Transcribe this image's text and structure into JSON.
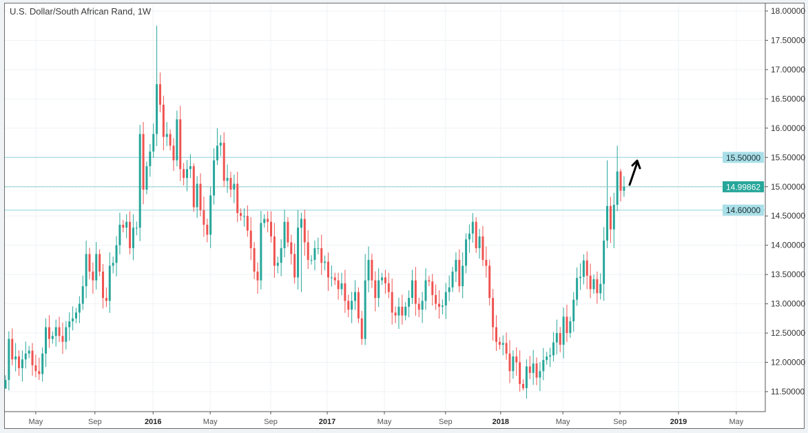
{
  "chart_data": {
    "type": "candlestick",
    "title": "U.S. Dollar/South African Rand, 1W",
    "ylim": [
      11.35,
      18.1
    ],
    "y_ticks": [
      11.5,
      12.0,
      12.5,
      13.0,
      13.5,
      14.0,
      14.5,
      15.0,
      15.5,
      16.0,
      16.5,
      17.0,
      17.5,
      18.0
    ],
    "y_tick_labels": [
      "11.50000",
      "12.00000",
      "12.50000",
      "13.00000",
      "13.50000",
      "14.00000",
      "14.50000",
      "15.00000",
      "15.50000",
      "16.00000",
      "16.50000",
      "17.00000",
      "17.50000",
      "18.00000"
    ],
    "x_ticks": [
      {
        "label": "May",
        "week": 9.0,
        "bold": false
      },
      {
        "label": "Sep",
        "week": 26.6,
        "bold": false
      },
      {
        "label": "2016",
        "week": 43.9,
        "bold": true
      },
      {
        "label": "May",
        "week": 60.9,
        "bold": false
      },
      {
        "label": "Sep",
        "week": 78.9,
        "bold": false
      },
      {
        "label": "2017",
        "week": 95.7,
        "bold": true
      },
      {
        "label": "May",
        "week": 112.7,
        "bold": false
      },
      {
        "label": "Sep",
        "week": 130.9,
        "bold": false
      },
      {
        "label": "2018",
        "week": 147.3,
        "bold": true
      },
      {
        "label": "May",
        "week": 165.8,
        "bold": false
      },
      {
        "label": "Sep",
        "week": 182.8,
        "bold": false
      },
      {
        "label": "2019",
        "week": 200.2,
        "bold": true
      },
      {
        "label": "May",
        "week": 217.4,
        "bold": false
      }
    ],
    "first_open": 11.55,
    "close": [
      11.7,
      12.4,
      12.05,
      12.1,
      11.9,
      12.05,
      12.15,
      12.2,
      11.95,
      11.85,
      11.8,
      12.15,
      12.6,
      12.4,
      12.45,
      12.6,
      12.45,
      12.35,
      12.6,
      12.7,
      12.75,
      12.85,
      13.0,
      13.3,
      13.85,
      13.55,
      13.4,
      13.85,
      13.55,
      13.1,
      13.05,
      13.65,
      13.7,
      14.0,
      14.35,
      14.3,
      14.4,
      13.95,
      14.3,
      14.3,
      15.9,
      14.95,
      15.35,
      15.6,
      15.9,
      16.75,
      16.4,
      15.85,
      15.9,
      15.7,
      15.45,
      16.15,
      15.3,
      15.15,
      15.3,
      15.35,
      14.65,
      15.05,
      14.6,
      14.35,
      14.18,
      14.85,
      15.45,
      15.7,
      15.75,
      15.1,
      15.15,
      14.95,
      15.05,
      14.55,
      14.5,
      14.5,
      14.25,
      13.95,
      13.55,
      13.4,
      14.38,
      14.45,
      14.4,
      14.15,
      13.65,
      13.7,
      13.95,
      14.4,
      14.05,
      13.85,
      13.45,
      14.3,
      14.45,
      14.05,
      13.75,
      13.75,
      13.95,
      13.95,
      13.7,
      13.72,
      13.45,
      13.45,
      13.4,
      13.25,
      13.35,
      13.05,
      12.9,
      13.05,
      13.2,
      12.75,
      12.4,
      13.4,
      13.75,
      13.4,
      13.1,
      13.4,
      13.45,
      13.35,
      13.2,
      12.85,
      12.8,
      12.95,
      12.8,
      12.95,
      13.1,
      13.4,
      13.0,
      12.9,
      13.05,
      13.4,
      13.38,
      13.15,
      13.0,
      12.95,
      12.97,
      13.2,
      13.28,
      13.55,
      13.75,
      13.3,
      13.65,
      14.1,
      14.2,
      14.4,
      13.95,
      14.15,
      13.75,
      13.65,
      13.1,
      12.6,
      12.35,
      12.3,
      12.33,
      12.15,
      11.85,
      12.1,
      12.0,
      11.63,
      11.56,
      11.93,
      11.82,
      11.98,
      11.74,
      11.85,
      12.04,
      12.1,
      12.12,
      12.34,
      12.5,
      12.3,
      12.78,
      12.5,
      12.7,
      13.07,
      13.44,
      13.46,
      13.74,
      13.48,
      13.25,
      13.42,
      13.18,
      13.34,
      14.08,
      14.67,
      14.27,
      14.69,
      15.26,
      14.93,
      14.99862
    ],
    "notable_highs": {
      "12": 12.75,
      "45": 17.75,
      "46": 16.95,
      "51": 16.3,
      "56": 15.4,
      "63": 16.0,
      "87": 14.6,
      "107": 13.85,
      "139": 14.55,
      "155": 12.05,
      "179": 15.45,
      "182": 15.7,
      "183": 15.3
    },
    "notable_lows": {
      "0": 11.6,
      "10": 11.7,
      "41": 14.7,
      "88": 13.2,
      "106": 12.3,
      "153": 11.5,
      "154": 11.52,
      "178": 13.05,
      "181": 13.95,
      "182": 14.58
    },
    "up_color": "#26a69a",
    "down_color": "#ef5350",
    "horizontal_levels": [
      {
        "price": 15.5,
        "label": "15.50000",
        "color": "#8fd3de",
        "label_bg": "#a9dfe8"
      },
      {
        "price": 14.6,
        "label": "14.60000",
        "color": "#8fd3de",
        "label_bg": "#a9dfe8"
      }
    ],
    "last_price": {
      "price": 14.99862,
      "label": "14.99862",
      "color": "#26a69a"
    }
  }
}
